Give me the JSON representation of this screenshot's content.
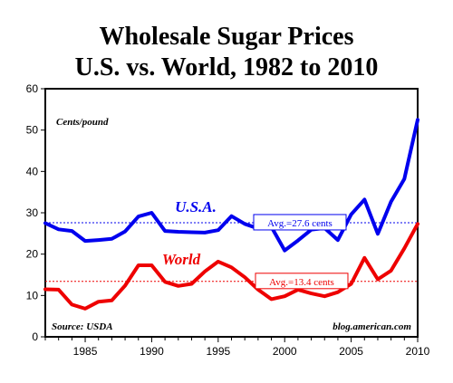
{
  "chart_data": {
    "type": "line",
    "title_line1": "Wholesale Sugar Prices",
    "title_line2": "U.S. vs. World, 1982 to 2010",
    "unit_label": "Cents/pound",
    "source": "Source: USDA",
    "credit": "blog.american.com",
    "xlim": [
      1982,
      2010
    ],
    "ylim": [
      0,
      60
    ],
    "x_ticks": [
      1985,
      1990,
      1995,
      2000,
      2005,
      2010
    ],
    "y_ticks": [
      0,
      10,
      20,
      30,
      40,
      50,
      60
    ],
    "x": [
      1982,
      1983,
      1984,
      1985,
      1986,
      1987,
      1988,
      1989,
      1990,
      1991,
      1992,
      1993,
      1994,
      1995,
      1996,
      1997,
      1998,
      1999,
      2000,
      2001,
      2002,
      2003,
      2004,
      2005,
      2006,
      2007,
      2008,
      2009,
      2010
    ],
    "series": [
      {
        "name": "U.S.A.",
        "color": "#0000ee",
        "values": [
          27.5,
          26.0,
          25.6,
          23.2,
          23.4,
          23.7,
          25.5,
          29.1,
          30.0,
          25.6,
          25.4,
          25.3,
          25.2,
          25.8,
          29.2,
          27.3,
          26.2,
          26.6,
          20.9,
          23.3,
          25.9,
          26.3,
          23.4,
          29.6,
          33.2,
          24.9,
          32.7,
          38.2,
          52.5
        ],
        "average": 27.6,
        "average_label": "Avg.=27.6 cents"
      },
      {
        "name": "World",
        "color": "#ee0000",
        "values": [
          11.5,
          11.4,
          7.8,
          6.8,
          8.5,
          8.8,
          12.4,
          17.3,
          17.3,
          13.3,
          12.3,
          12.8,
          15.8,
          18.2,
          16.8,
          14.4,
          11.4,
          9.1,
          9.8,
          11.4,
          10.5,
          9.8,
          10.8,
          12.8,
          19.1,
          13.9,
          16.0,
          21.4,
          27.3
        ],
        "average": 13.4,
        "average_label": "Avg.=13.4 cents"
      }
    ],
    "grid": false
  }
}
